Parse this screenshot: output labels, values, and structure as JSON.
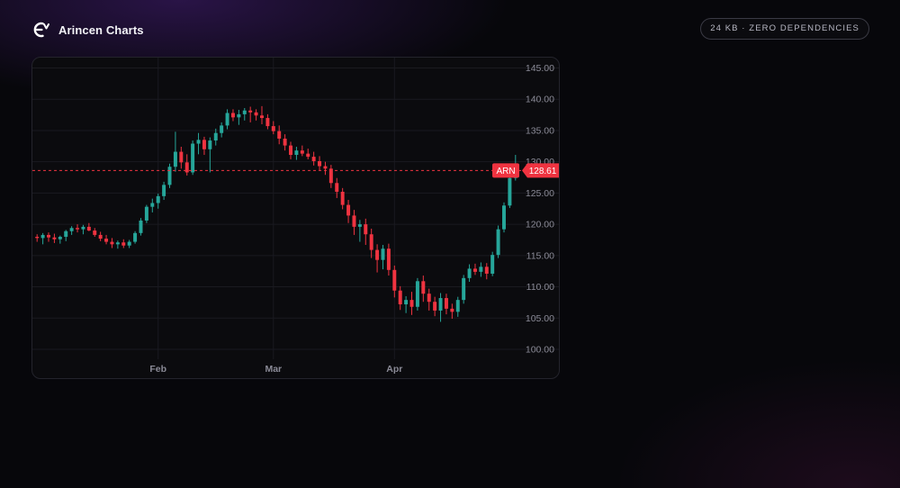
{
  "header": {
    "brand_name": "Arincen Charts",
    "brand_icon": "arincen-logo-icon",
    "badge": "24 KB · ZERO DEPENDENCIES"
  },
  "colors": {
    "up": "#26a69a",
    "down": "#ef3340",
    "grid": "#1a1a20",
    "axis_text": "#8a8a96",
    "price_line": "#ef3340"
  },
  "chart_data": {
    "type": "candlestick",
    "title": "",
    "symbol_label": "ARN",
    "last_price_label": "128.61",
    "last_price": 128.61,
    "ylim": [
      100,
      145
    ],
    "y_ticks": [
      "145.00",
      "140.00",
      "135.00",
      "130.00",
      "125.00",
      "120.00",
      "115.00",
      "110.00",
      "105.00",
      "100.00"
    ],
    "y_tick_values": [
      145,
      140,
      135,
      130,
      125,
      120,
      115,
      110,
      105,
      100
    ],
    "x_tick_labels": [
      {
        "label": "Feb",
        "index": 21
      },
      {
        "label": "Mar",
        "index": 41
      },
      {
        "label": "Apr",
        "index": 62
      }
    ],
    "grid": true,
    "candles": [
      [
        118.0,
        118.4,
        117.2,
        117.8
      ],
      [
        117.8,
        118.6,
        116.8,
        118.3
      ],
      [
        118.3,
        118.7,
        117.2,
        117.9
      ],
      [
        117.9,
        118.5,
        117.0,
        117.6
      ],
      [
        117.6,
        118.2,
        116.9,
        118.0
      ],
      [
        118.0,
        119.1,
        117.3,
        118.9
      ],
      [
        118.9,
        119.7,
        118.3,
        119.4
      ],
      [
        119.4,
        120.0,
        118.7,
        119.2
      ],
      [
        119.2,
        119.9,
        118.4,
        119.6
      ],
      [
        119.6,
        120.2,
        118.9,
        119.0
      ],
      [
        119.0,
        119.4,
        118.0,
        118.3
      ],
      [
        118.3,
        118.8,
        117.3,
        117.7
      ],
      [
        117.7,
        118.3,
        116.8,
        117.2
      ],
      [
        117.2,
        117.8,
        116.2,
        116.8
      ],
      [
        116.8,
        117.4,
        116.1,
        117.1
      ],
      [
        117.1,
        117.6,
        116.2,
        116.6
      ],
      [
        116.6,
        117.5,
        116.2,
        117.2
      ],
      [
        117.2,
        118.9,
        116.9,
        118.6
      ],
      [
        118.6,
        121.0,
        118.2,
        120.6
      ],
      [
        120.6,
        123.1,
        120.2,
        122.8
      ],
      [
        122.8,
        124.1,
        121.9,
        123.4
      ],
      [
        123.4,
        124.9,
        122.5,
        124.5
      ],
      [
        124.5,
        126.8,
        123.9,
        126.3
      ],
      [
        126.3,
        129.7,
        125.8,
        129.2
      ],
      [
        129.2,
        134.8,
        128.4,
        131.6
      ],
      [
        131.6,
        132.4,
        128.9,
        129.9
      ],
      [
        129.9,
        131.2,
        127.8,
        128.3
      ],
      [
        128.3,
        133.4,
        127.9,
        132.9
      ],
      [
        132.9,
        134.6,
        131.2,
        133.5
      ],
      [
        133.5,
        134.0,
        131.1,
        132.0
      ],
      [
        132.0,
        133.9,
        128.3,
        133.4
      ],
      [
        133.4,
        135.3,
        132.6,
        134.6
      ],
      [
        134.6,
        136.3,
        133.9,
        135.8
      ],
      [
        135.8,
        138.4,
        135.2,
        137.8
      ],
      [
        137.8,
        138.4,
        136.5,
        137.1
      ],
      [
        137.1,
        138.3,
        135.9,
        137.6
      ],
      [
        137.6,
        138.6,
        136.6,
        138.2
      ],
      [
        138.2,
        138.8,
        136.3,
        137.9
      ],
      [
        137.9,
        138.4,
        136.6,
        137.4
      ],
      [
        137.4,
        138.9,
        136.0,
        137.0
      ],
      [
        137.0,
        137.6,
        135.2,
        135.7
      ],
      [
        135.7,
        136.5,
        134.4,
        134.9
      ],
      [
        134.9,
        135.8,
        132.8,
        133.7
      ],
      [
        133.7,
        134.4,
        131.8,
        132.6
      ],
      [
        132.6,
        133.2,
        130.4,
        131.1
      ],
      [
        131.1,
        132.4,
        130.3,
        131.8
      ],
      [
        131.8,
        132.6,
        130.9,
        131.3
      ],
      [
        131.3,
        132.1,
        130.4,
        130.8
      ],
      [
        130.8,
        131.6,
        129.4,
        130.1
      ],
      [
        130.1,
        130.9,
        128.6,
        129.3
      ],
      [
        129.3,
        130.0,
        127.9,
        128.9
      ],
      [
        128.9,
        129.5,
        125.8,
        126.6
      ],
      [
        126.6,
        127.4,
        124.2,
        125.2
      ],
      [
        125.2,
        125.8,
        122.4,
        123.1
      ],
      [
        123.1,
        123.9,
        120.2,
        121.4
      ],
      [
        121.4,
        122.3,
        118.3,
        119.6
      ],
      [
        119.6,
        120.7,
        117.2,
        120.0
      ],
      [
        120.0,
        120.9,
        116.7,
        118.4
      ],
      [
        118.4,
        119.3,
        114.6,
        115.9
      ],
      [
        115.9,
        116.8,
        112.3,
        114.3
      ],
      [
        114.3,
        116.7,
        112.8,
        116.1
      ],
      [
        116.1,
        116.9,
        111.8,
        112.7
      ],
      [
        112.7,
        113.4,
        108.3,
        109.4
      ],
      [
        109.4,
        110.1,
        106.3,
        107.2
      ],
      [
        107.2,
        108.5,
        105.8,
        107.9
      ],
      [
        107.9,
        109.2,
        105.5,
        106.8
      ],
      [
        106.8,
        111.4,
        106.2,
        110.9
      ],
      [
        110.9,
        111.8,
        107.6,
        108.9
      ],
      [
        108.9,
        109.7,
        106.2,
        107.6
      ],
      [
        107.6,
        108.4,
        105.3,
        106.2
      ],
      [
        106.2,
        109.0,
        104.4,
        108.2
      ],
      [
        108.2,
        108.9,
        105.6,
        106.5
      ],
      [
        106.5,
        107.3,
        104.9,
        106.0
      ],
      [
        106.0,
        108.4,
        105.2,
        107.9
      ],
      [
        107.9,
        111.9,
        107.3,
        111.4
      ],
      [
        111.4,
        113.6,
        110.8,
        112.9
      ],
      [
        112.9,
        113.7,
        111.9,
        112.4
      ],
      [
        112.4,
        113.9,
        111.6,
        113.2
      ],
      [
        113.2,
        113.8,
        111.2,
        112.1
      ],
      [
        112.1,
        115.6,
        111.7,
        115.1
      ],
      [
        115.1,
        119.8,
        114.6,
        119.2
      ],
      [
        119.2,
        123.5,
        118.7,
        123.0
      ],
      [
        123.0,
        127.9,
        122.6,
        127.4
      ],
      [
        127.4,
        131.1,
        127.0,
        128.61
      ]
    ]
  }
}
